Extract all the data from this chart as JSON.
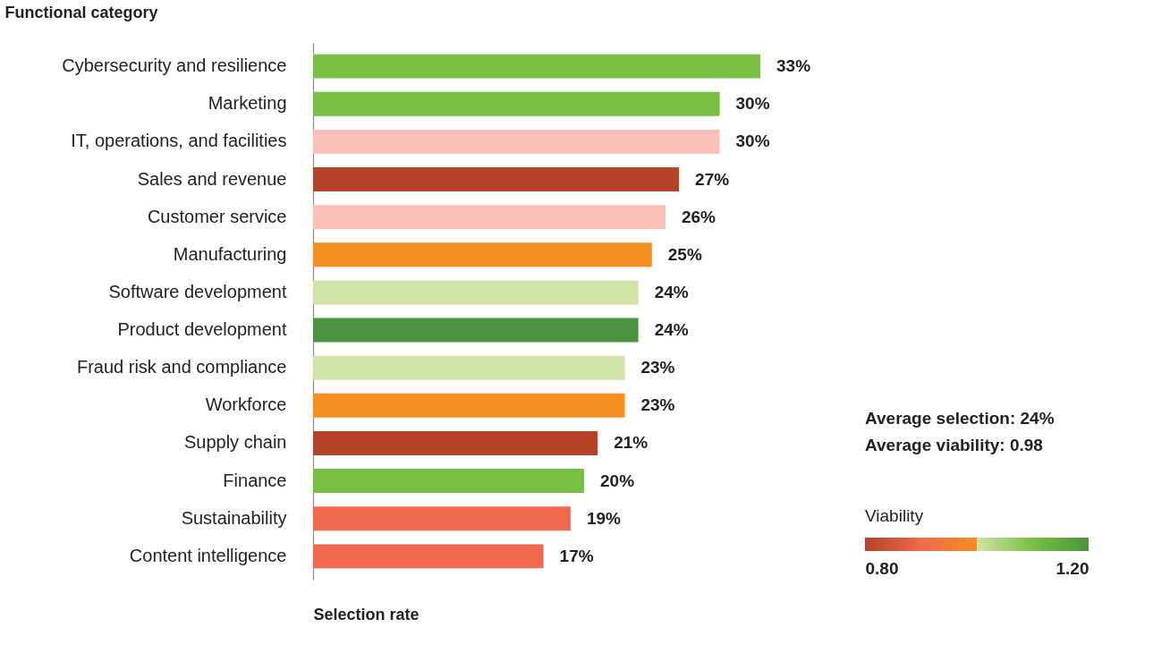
{
  "chart_data": {
    "type": "bar",
    "orientation": "horizontal",
    "ylabel": "Functional category",
    "xlabel": "Selection rate",
    "categories": [
      "Cybersecurity and resilience",
      "Marketing",
      "IT, operations, and facilities",
      "Sales and revenue",
      "Customer service",
      "Manufacturing",
      "Software development",
      "Product development",
      "Fraud risk and compliance",
      "Workforce",
      "Supply chain",
      "Finance",
      "Sustainability",
      "Content intelligence"
    ],
    "values": [
      33,
      30,
      30,
      27,
      26,
      25,
      24,
      24,
      23,
      23,
      21,
      20,
      19,
      17
    ],
    "value_labels": [
      "33%",
      "30%",
      "30%",
      "27%",
      "26%",
      "25%",
      "24%",
      "24%",
      "23%",
      "23%",
      "21%",
      "20%",
      "19%",
      "17%"
    ],
    "colors": [
      "#78c043",
      "#78c043",
      "#f9c0b8",
      "#b5432a",
      "#f9c0b8",
      "#f58d20",
      "#d1e3a7",
      "#4a9440",
      "#d1e3a7",
      "#f58d20",
      "#b5432a",
      "#78c043",
      "#f0694f",
      "#f0694f"
    ],
    "annotations": [
      "Average selection: 24%",
      "Average viability: 0.98"
    ],
    "clabel": "Viability",
    "clim": [
      0.8,
      1.2
    ],
    "cticks": [
      {
        "value": 0.8,
        "label": "0.80"
      },
      {
        "value": 1.2,
        "label": "1.20"
      }
    ],
    "tick_labels": "y",
    "grid": false
  }
}
